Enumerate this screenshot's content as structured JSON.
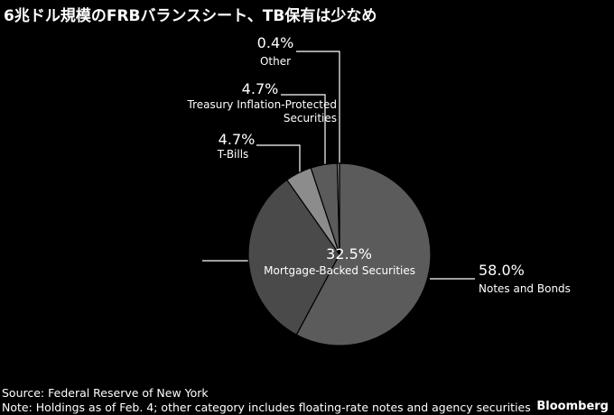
{
  "chart_data": {
    "type": "pie",
    "title": "6兆ドル規模のFRBバランスシート、TB保有は少なめ",
    "categories": [
      "Notes and Bonds",
      "Mortgage-Backed Securities",
      "T-Bills",
      "Treasury Inflation-Protected Securities",
      "Other"
    ],
    "values": [
      58.0,
      32.5,
      4.7,
      4.7,
      0.4
    ],
    "value_labels": [
      "58.0%",
      "32.5%",
      "4.7%",
      "4.7%",
      "0.4%"
    ],
    "colors": [
      "#5b5b5b",
      "#4a4a4a",
      "#8c8c8c",
      "#5b5b5b",
      "#8c8c8c"
    ]
  },
  "source": "Source: Federal Reserve of New York",
  "note": "Note: Holdings as of Feb. 4; other category includes floating-rate notes and agency securities",
  "brand": "Bloomberg"
}
